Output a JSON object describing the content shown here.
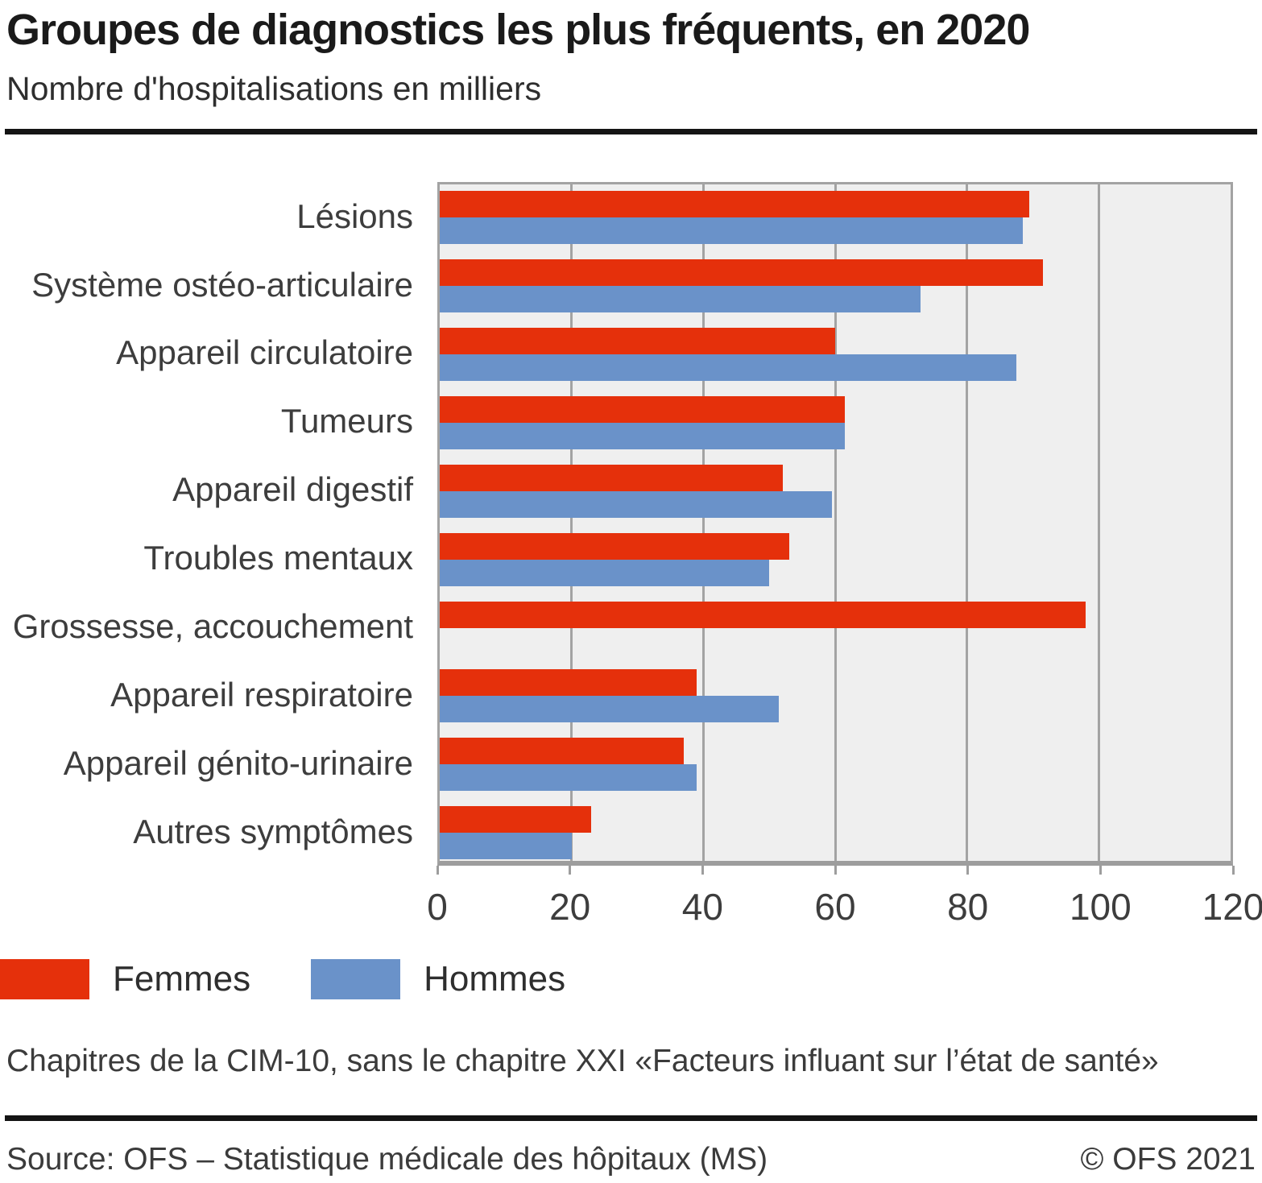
{
  "header": {
    "title": "Groupes de diagnostics les plus fréquents, en 2020",
    "subtitle": "Nombre d'hospitalisations en milliers"
  },
  "chart_data": {
    "type": "bar",
    "orientation": "horizontal",
    "title": "Groupes de diagnostics les plus fréquents, en 2020",
    "subtitle": "Nombre d'hospitalisations en milliers",
    "categories": [
      "Lésions",
      "Système ostéo-articulaire",
      "Appareil circulatoire",
      "Tumeurs",
      "Appareil digestif",
      "Troubles mentaux",
      "Grossesse, accouchement",
      "Appareil respiratoire",
      "Appareil génito-urinaire",
      "Autres symptômes"
    ],
    "series": [
      {
        "name": "Femmes",
        "color": "#E5300B",
        "values": [
          89.5,
          91.5,
          60,
          61.5,
          52,
          53,
          98,
          39,
          37,
          23
        ]
      },
      {
        "name": "Hommes",
        "color": "#6A92C9",
        "values": [
          88.5,
          73,
          87.5,
          61.5,
          59.5,
          50,
          0,
          51.5,
          39,
          20
        ]
      }
    ],
    "xlim": [
      0,
      120
    ],
    "xticks": [
      0,
      20,
      40,
      60,
      80,
      100,
      120
    ],
    "grid": "vertical",
    "plot_background": "#EFEFEF",
    "gridline_color": "#A3A3A3",
    "legend_position": "bottom-left"
  },
  "legend": {
    "items": [
      {
        "label": "Femmes",
        "color": "#E5300B"
      },
      {
        "label": "Hommes",
        "color": "#6A92C9"
      }
    ]
  },
  "footnote": "Chapitres de la CIM-10, sans le chapitre XXI «Facteurs influant sur l’état de santé»",
  "source": {
    "left": "Source: OFS – Statistique médicale des hôpitaux (MS)",
    "right": "© OFS 2021"
  }
}
